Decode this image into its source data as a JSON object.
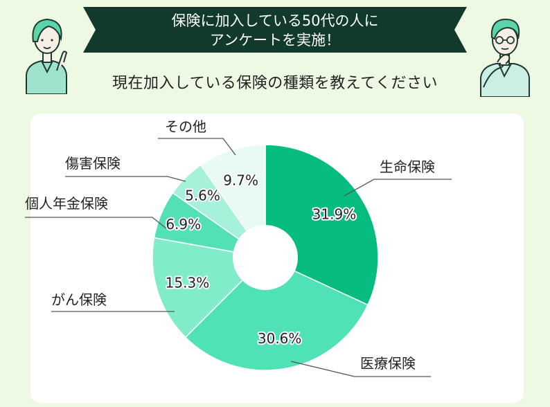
{
  "header": {
    "banner_line1": "保険に加入している50代の人に",
    "banner_line2": "アンケートを実施！",
    "question": "現在加入している保険の種類を教えてください"
  },
  "colors": {
    "background": "#eef9e3",
    "banner": "#123a2c",
    "card": "#ffffff"
  },
  "chart_data": {
    "type": "pie",
    "donut": true,
    "title": "",
    "series": [
      {
        "label": "生命保険",
        "value": 31.9,
        "value_label": "31.9%",
        "color": "#06bc7f"
      },
      {
        "label": "医療保険",
        "value": 30.6,
        "value_label": "30.6%",
        "color": "#4fe2b6"
      },
      {
        "label": "がん保険",
        "value": 15.3,
        "value_label": "15.3%",
        "color": "#81ecc9"
      },
      {
        "label": "個人年金保険",
        "value": 6.9,
        "value_label": "6.9%",
        "color": "#52e0b4"
      },
      {
        "label": "傷害保険",
        "value": 5.6,
        "value_label": "5.6%",
        "color": "#a6f1d9"
      },
      {
        "label": "その他",
        "value": 9.7,
        "value_label": "9.7%",
        "color": "#e8faf3"
      }
    ]
  }
}
